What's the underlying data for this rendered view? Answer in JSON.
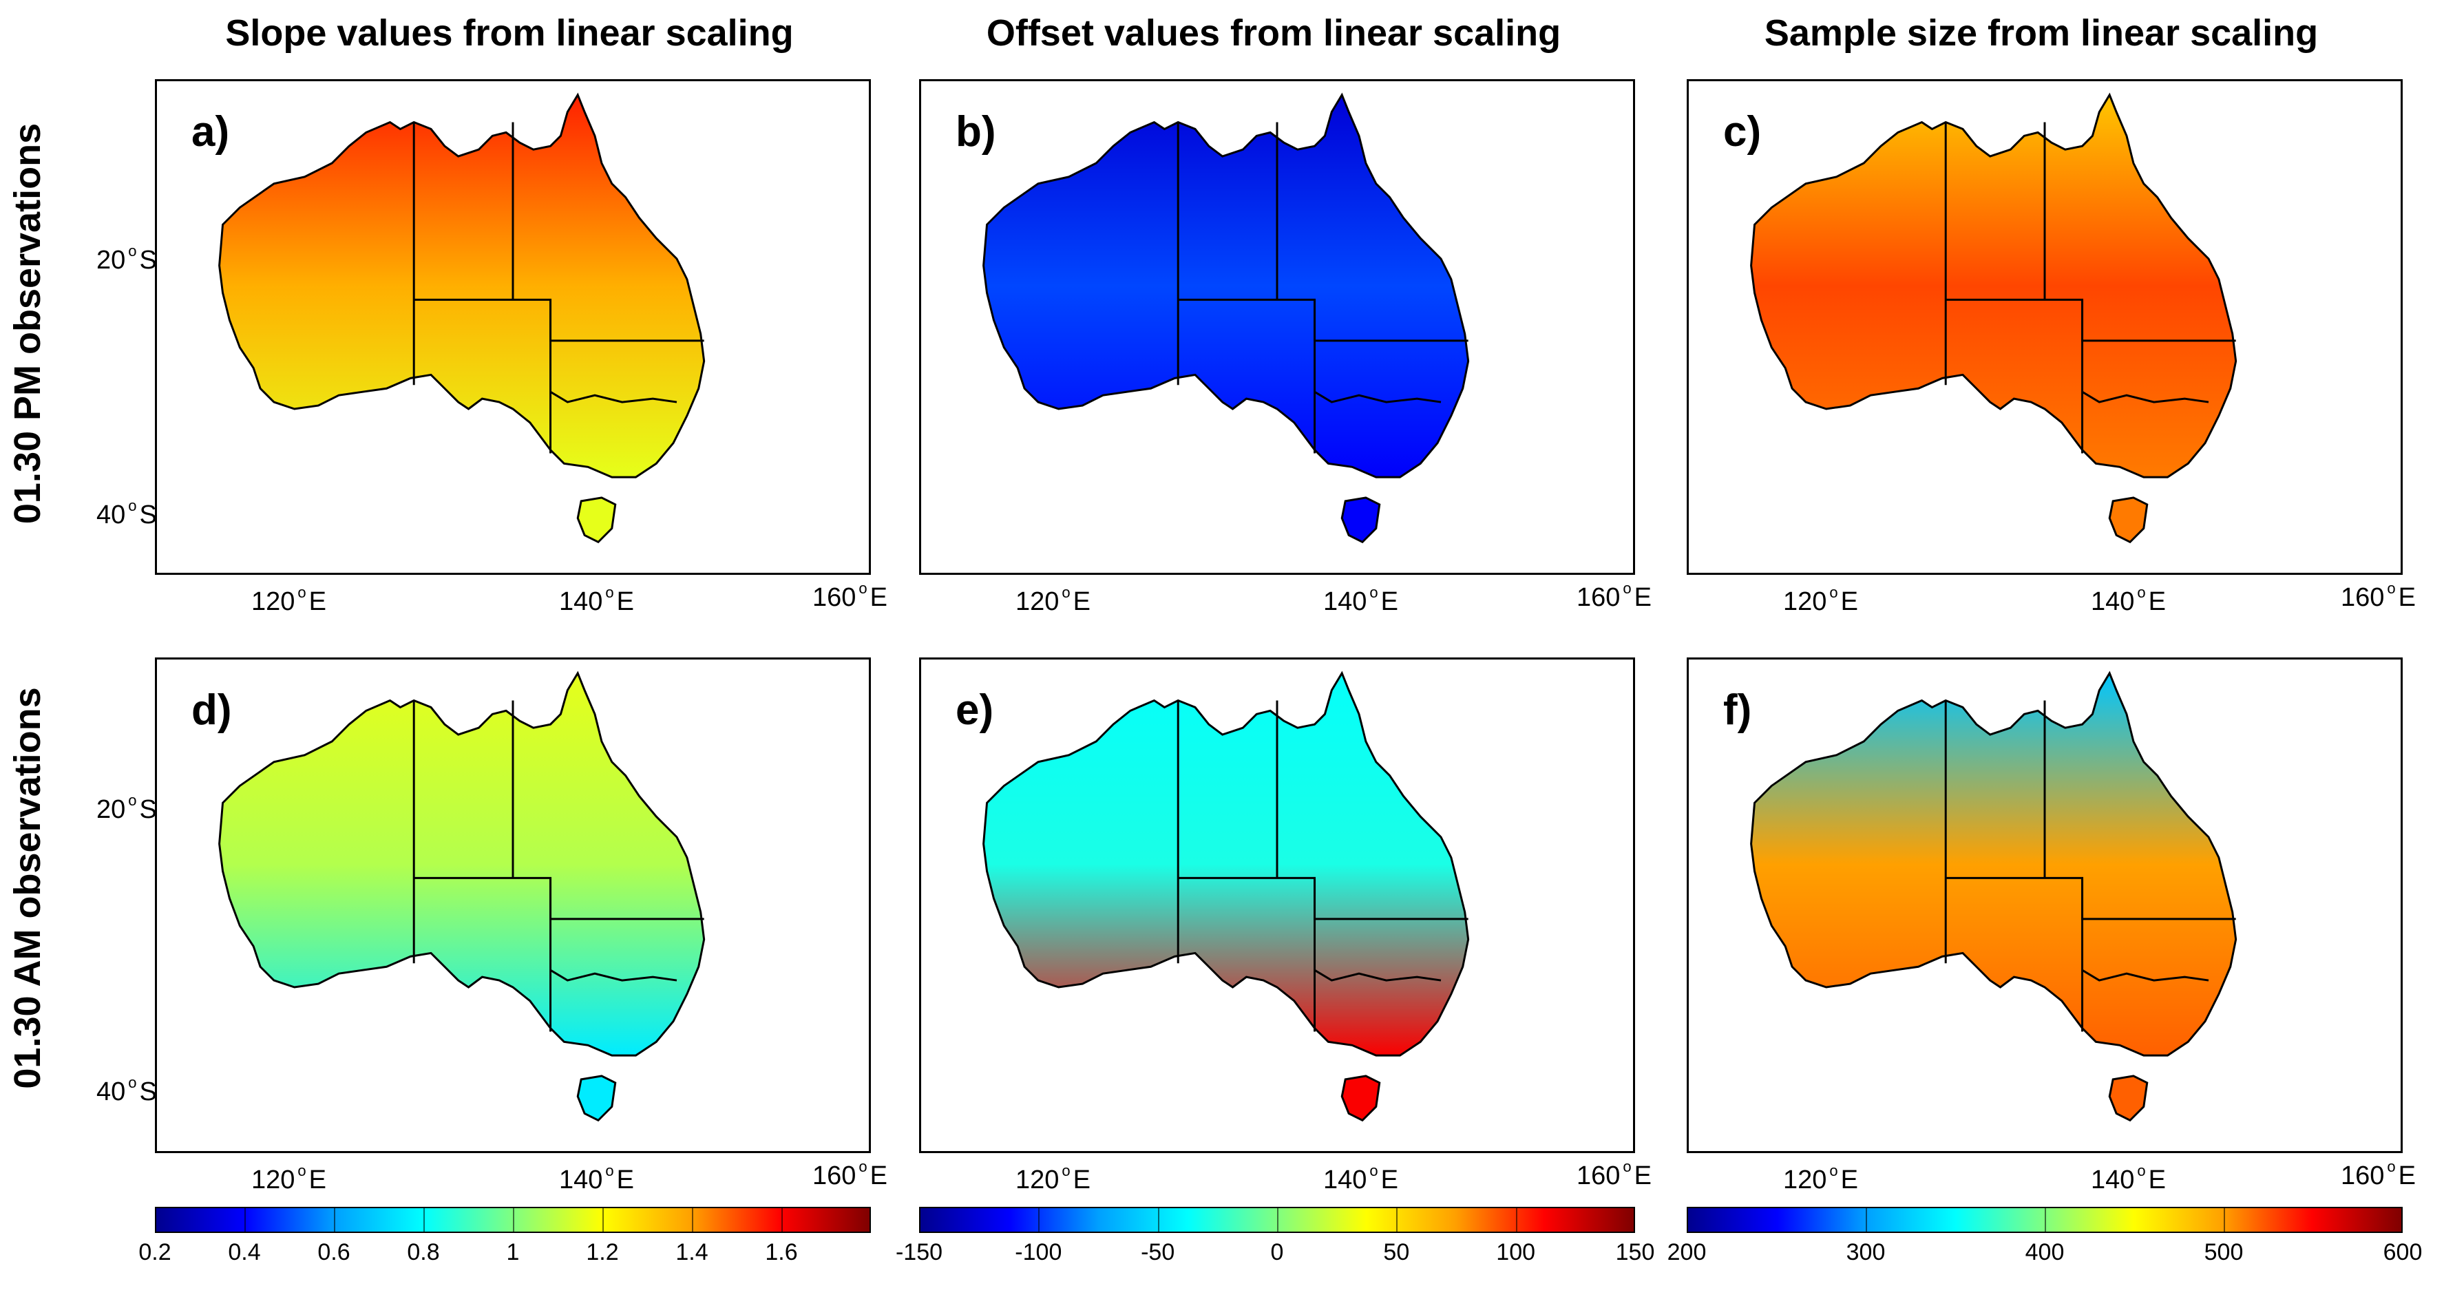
{
  "column_titles": [
    "Slope values from linear scaling",
    "Offset values from linear scaling",
    "Sample size from linear scaling"
  ],
  "row_titles": [
    "01.30 PM observations",
    "01.30 AM observations"
  ],
  "axis_labels": {
    "lat": [
      {
        "value": "20",
        "hemi": "S"
      },
      {
        "value": "40",
        "hemi": "S"
      }
    ],
    "lon": [
      {
        "value": "120",
        "hemi": "E"
      },
      {
        "value": "140",
        "hemi": "E"
      },
      {
        "value": "160",
        "hemi": "E"
      }
    ]
  },
  "panels": [
    {
      "label": "a)",
      "row": 0,
      "col": 0,
      "colormap": "jet",
      "land_level": 0.73,
      "north_level": 0.85,
      "south_level": 0.6
    },
    {
      "label": "b)",
      "row": 0,
      "col": 1,
      "colormap": "jet",
      "land_level": 0.18,
      "north_level": 0.08,
      "south_level": 0.12
    },
    {
      "label": "c)",
      "row": 0,
      "col": 2,
      "colormap": "jet",
      "land_level": 0.82,
      "north_level": 0.7,
      "south_level": 0.78
    },
    {
      "label": "d)",
      "row": 1,
      "col": 0,
      "colormap": "jet",
      "land_level": 0.55,
      "north_level": 0.6,
      "south_level": 0.35
    },
    {
      "label": "e)",
      "row": 1,
      "col": 1,
      "colormap": "jet",
      "land_level": 0.4,
      "north_level": 0.38,
      "south_level": 0.88
    },
    {
      "label": "f)",
      "row": 1,
      "col": 2,
      "colormap": "jet",
      "land_level": 0.75,
      "north_level": 0.3,
      "south_level": 0.8
    }
  ],
  "colorbars": [
    {
      "ticks": [
        "0.2",
        "0.4",
        "0.6",
        "0.8",
        "1",
        "1.2",
        "1.4",
        "1.6"
      ],
      "min": 0.2,
      "max": 1.8,
      "values": [
        0.2,
        0.4,
        0.6,
        0.8,
        1.0,
        1.2,
        1.4,
        1.6
      ]
    },
    {
      "ticks": [
        "-150",
        "-100",
        "-50",
        "0",
        "50",
        "100",
        "150"
      ],
      "min": -150,
      "max": 150,
      "values": [
        -150,
        -100,
        -50,
        0,
        50,
        100,
        150
      ]
    },
    {
      "ticks": [
        "200",
        "300",
        "400",
        "500",
        "600"
      ],
      "min": 200,
      "max": 600,
      "values": [
        200,
        300,
        400,
        500,
        600
      ]
    }
  ],
  "colors": {
    "jet_stops": [
      "#00008f",
      "#0000ff",
      "#00a0ff",
      "#00ffff",
      "#80ff80",
      "#ffff00",
      "#ffa000",
      "#ff0000",
      "#800000"
    ]
  }
}
